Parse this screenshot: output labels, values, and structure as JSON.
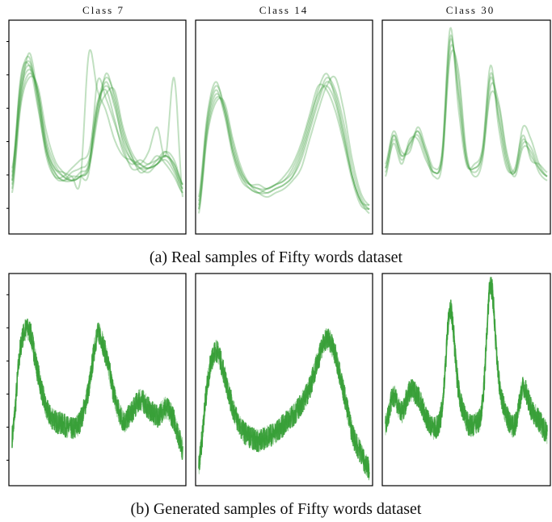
{
  "titles": [
    "Class 7",
    "Class 14",
    "Class 30"
  ],
  "captions": {
    "real": "(a) Real samples of Fifty words dataset",
    "generated": "(b) Generated samples of Fifty words dataset"
  },
  "colors": {
    "real_line": "#3f9f3f",
    "generated_line": "#2e9a2e",
    "frame": "#000000"
  },
  "chart_data": [
    {
      "type": "line",
      "title": "Class 7",
      "row": "real",
      "series": [
        {
          "values": [
            -0.9,
            1.3,
            1.9,
            1.2,
            -0.1,
            -0.7,
            -0.9,
            -0.9,
            -0.7,
            -0.5,
            0.9,
            1.4,
            1.0,
            0.0,
            -0.4,
            -0.6,
            -0.6,
            -0.5,
            -0.3,
            -0.6,
            -1.1
          ]
        },
        {
          "values": [
            -0.7,
            1.5,
            2.1,
            1.0,
            -0.3,
            -0.8,
            -0.8,
            -0.6,
            -0.4,
            -0.2,
            1.0,
            1.3,
            0.6,
            -0.2,
            -0.5,
            -0.4,
            -0.5,
            -0.3,
            -0.5,
            -0.8,
            -1.2
          ]
        },
        {
          "values": [
            -1.1,
            1.0,
            1.7,
            1.3,
            0.1,
            -0.5,
            -0.8,
            -0.9,
            -0.8,
            -0.6,
            0.6,
            1.7,
            1.1,
            0.2,
            -0.3,
            -0.7,
            -0.6,
            -0.5,
            -0.2,
            -0.4,
            -1.0
          ]
        },
        {
          "values": [
            -0.8,
            1.4,
            2.0,
            1.1,
            -0.2,
            -0.7,
            -0.9,
            -0.8,
            -0.8,
            -0.7,
            1.5,
            1.1,
            0.5,
            -0.1,
            -0.6,
            -0.6,
            -0.5,
            -0.4,
            -0.3,
            -0.5,
            -1.0
          ]
        },
        {
          "values": [
            -1.0,
            1.2,
            1.8,
            1.3,
            0.0,
            -0.6,
            -0.7,
            -0.8,
            -0.9,
            2.2,
            1.3,
            0.8,
            0.1,
            -0.3,
            -0.4,
            -0.5,
            -0.6,
            -0.4,
            -0.2,
            -0.6,
            -1.1
          ]
        },
        {
          "values": [
            -0.9,
            1.6,
            1.9,
            0.9,
            -0.2,
            -0.8,
            -0.9,
            -0.7,
            -0.6,
            -0.4,
            0.8,
            1.5,
            0.9,
            0.1,
            -0.4,
            -0.5,
            -0.2,
            0.4,
            -0.3,
            1.6,
            -1.3
          ]
        },
        {
          "values": [
            -0.6,
            1.1,
            2.2,
            1.2,
            -0.1,
            -0.6,
            -0.8,
            -0.9,
            -0.8,
            -0.5,
            0.9,
            1.6,
            1.2,
            0.3,
            -0.3,
            -0.6,
            -0.7,
            -0.5,
            -0.4,
            -0.7,
            -1.2
          ]
        },
        {
          "values": [
            -1.2,
            0.9,
            1.6,
            1.4,
            0.3,
            -0.4,
            -0.7,
            -0.9,
            -0.8,
            -0.6,
            0.7,
            1.2,
            1.3,
            0.4,
            -0.2,
            -0.5,
            -0.6,
            -0.5,
            -0.3,
            -0.5,
            -1.0
          ]
        }
      ]
    },
    {
      "type": "line",
      "title": "Class 14",
      "row": "real",
      "series": [
        {
          "values": [
            -1.6,
            0.4,
            1.2,
            0.8,
            -0.2,
            -0.8,
            -1.1,
            -1.2,
            -1.2,
            -1.1,
            -1.0,
            -0.8,
            -0.4,
            0.3,
            1.0,
            1.5,
            1.2,
            0.3,
            -0.8,
            -1.4,
            -1.7
          ]
        },
        {
          "values": [
            -1.4,
            0.6,
            1.4,
            0.9,
            -0.1,
            -0.7,
            -1.0,
            -1.1,
            -1.1,
            -1.0,
            -0.8,
            -0.5,
            0.0,
            0.7,
            1.4,
            1.3,
            0.8,
            0.0,
            -0.9,
            -1.5,
            -1.6
          ]
        },
        {
          "values": [
            -1.7,
            0.2,
            1.0,
            1.0,
            0.1,
            -0.6,
            -1.0,
            -1.2,
            -1.3,
            -1.2,
            -1.1,
            -0.9,
            -0.6,
            0.1,
            0.8,
            1.4,
            1.6,
            0.8,
            -0.4,
            -1.2,
            -1.5
          ]
        },
        {
          "values": [
            -1.5,
            0.5,
            1.3,
            0.7,
            -0.3,
            -0.9,
            -1.1,
            -1.2,
            -1.1,
            -1.0,
            -0.9,
            -0.7,
            -0.2,
            0.5,
            1.3,
            1.7,
            1.1,
            0.2,
            -0.8,
            -1.4,
            -1.6
          ]
        },
        {
          "values": [
            -1.6,
            0.3,
            1.1,
            0.9,
            0.0,
            -0.7,
            -1.0,
            -1.1,
            -1.2,
            -1.1,
            -1.0,
            -0.8,
            -0.3,
            0.4,
            1.1,
            1.6,
            1.3,
            0.5,
            -0.6,
            -1.3,
            -1.6
          ]
        },
        {
          "values": [
            -1.3,
            0.7,
            1.5,
            0.8,
            -0.2,
            -0.8,
            -1.0,
            -1.0,
            -1.1,
            -1.0,
            -0.9,
            -0.6,
            -0.1,
            0.6,
            1.2,
            1.4,
            1.0,
            0.1,
            -0.8,
            -1.4,
            -1.5
          ]
        }
      ]
    },
    {
      "type": "line",
      "title": "Class 30",
      "row": "real",
      "series": [
        {
          "values": [
            -0.6,
            0.2,
            -0.3,
            -0.1,
            0.3,
            -0.2,
            -0.7,
            -0.3,
            2.6,
            1.2,
            -0.4,
            -0.6,
            -0.2,
            1.6,
            0.6,
            -0.5,
            -0.7,
            0.1,
            -0.3,
            -0.6,
            -0.8
          ]
        },
        {
          "values": [
            -0.8,
            0.1,
            -0.4,
            0.0,
            0.2,
            -0.3,
            -0.8,
            -0.5,
            2.3,
            1.6,
            -0.3,
            -0.7,
            -0.3,
            1.2,
            0.9,
            -0.3,
            -0.8,
            -0.1,
            -0.2,
            -0.7,
            -0.9
          ]
        },
        {
          "values": [
            -0.5,
            0.3,
            -0.2,
            -0.2,
            0.4,
            -0.1,
            -0.6,
            -0.2,
            2.8,
            0.9,
            -0.5,
            -0.5,
            -0.1,
            1.9,
            0.4,
            -0.6,
            -0.6,
            0.2,
            -0.4,
            -0.5,
            -0.7
          ]
        },
        {
          "values": [
            -0.7,
            0.0,
            -0.5,
            0.1,
            0.1,
            -0.4,
            -0.7,
            -0.4,
            2.1,
            1.8,
            -0.2,
            -0.8,
            -0.4,
            1.4,
            1.0,
            -0.2,
            -0.7,
            0.0,
            -0.1,
            -0.6,
            -0.8
          ]
        },
        {
          "values": [
            -0.6,
            0.2,
            -0.3,
            0.0,
            0.3,
            -0.2,
            -0.7,
            -0.3,
            2.5,
            1.3,
            -0.4,
            -0.6,
            -0.2,
            1.7,
            0.7,
            -0.4,
            -0.7,
            0.4,
            0.1,
            -0.5,
            -0.8
          ]
        }
      ]
    },
    {
      "type": "line",
      "title": "Class 7",
      "row": "generated",
      "series": [
        {
          "values": [
            -1.0,
            1.2,
            1.6,
            0.6,
            -0.3,
            -0.6,
            -0.7,
            -0.8,
            -0.6,
            0.2,
            1.5,
            1.0,
            0.0,
            -0.6,
            -0.4,
            -0.1,
            -0.3,
            -0.5,
            -0.3,
            -0.6,
            -1.3
          ]
        }
      ]
    },
    {
      "type": "line",
      "title": "Class 14",
      "row": "generated",
      "series": [
        {
          "values": [
            -1.7,
            0.3,
            1.1,
            0.5,
            -0.3,
            -0.8,
            -1.0,
            -1.1,
            -1.0,
            -0.9,
            -0.7,
            -0.5,
            -0.2,
            0.2,
            0.9,
            1.4,
            1.0,
            0.1,
            -0.9,
            -1.4,
            -1.8
          ]
        }
      ]
    },
    {
      "type": "line",
      "title": "Class 30",
      "row": "generated",
      "series": [
        {
          "values": [
            -0.7,
            0.0,
            -0.4,
            0.1,
            0.0,
            -0.5,
            -0.8,
            -0.3,
            2.1,
            0.2,
            -0.6,
            -0.7,
            -0.2,
            2.7,
            0.4,
            -0.5,
            -0.7,
            0.2,
            -0.3,
            -0.6,
            -0.9
          ]
        }
      ]
    }
  ]
}
